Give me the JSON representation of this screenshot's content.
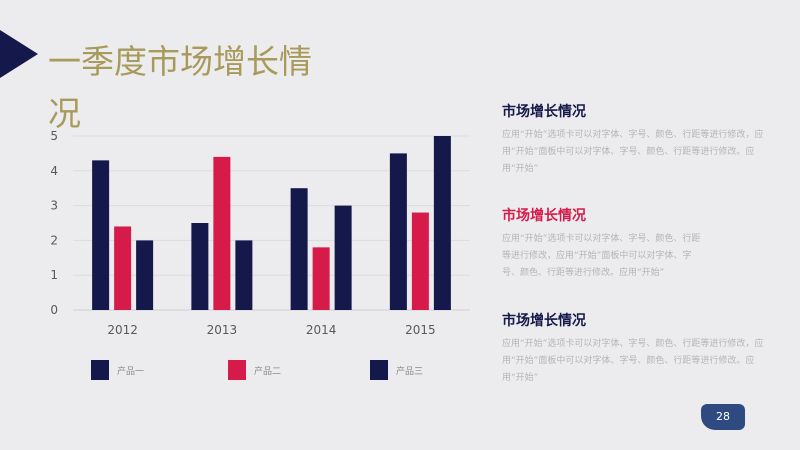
{
  "title": "一季度市场增长情况",
  "page_number": "28",
  "colors": {
    "navy": "#15184a",
    "crimson": "#d61a4a",
    "title_gold": "#a89a5a",
    "badge_blue": "#2f4a80"
  },
  "right_panel": [
    {
      "heading": "市场增长情况",
      "body": "应用“开始”选项卡可以对字体、字号、颜色、行距等进行修改，应用“开始”面板中可以对字体、字号、颜色、行距等进行修改。应用“开始”",
      "color": "#15184a"
    },
    {
      "heading": "市场增长情况",
      "body": "应用“开始”选项卡可以对字体、字号、颜色、行距等进行修改，应用“开始”面板中可以对字体、字号、颜色、行距等进行修改。应用“开始”",
      "color": "#d61a4a"
    },
    {
      "heading": "市场增长情况",
      "body": "应用“开始”选项卡可以对字体、字号、颜色、行距等进行修改，应用“开始”面板中可以对字体、字号、颜色、行距等进行修改。应用“开始”",
      "color": "#15184a"
    }
  ],
  "chart_data": {
    "type": "bar",
    "title": "",
    "xlabel": "",
    "ylabel": "",
    "categories": [
      "2012",
      "2013",
      "2014",
      "2015"
    ],
    "series": [
      {
        "name": "产品一",
        "values": [
          4.3,
          2.5,
          3.5,
          4.5
        ],
        "color": "#15184a"
      },
      {
        "name": "产品二",
        "values": [
          2.4,
          4.4,
          1.8,
          2.8
        ],
        "color": "#d61a4a"
      },
      {
        "name": "产品三",
        "values": [
          2.0,
          2.0,
          3.0,
          5.0
        ],
        "color": "#15184a"
      }
    ],
    "ylim": [
      0,
      5
    ],
    "yticks": [
      "0",
      "1",
      "2",
      "3",
      "4",
      "5"
    ],
    "grid": true,
    "legend": "bottom"
  }
}
